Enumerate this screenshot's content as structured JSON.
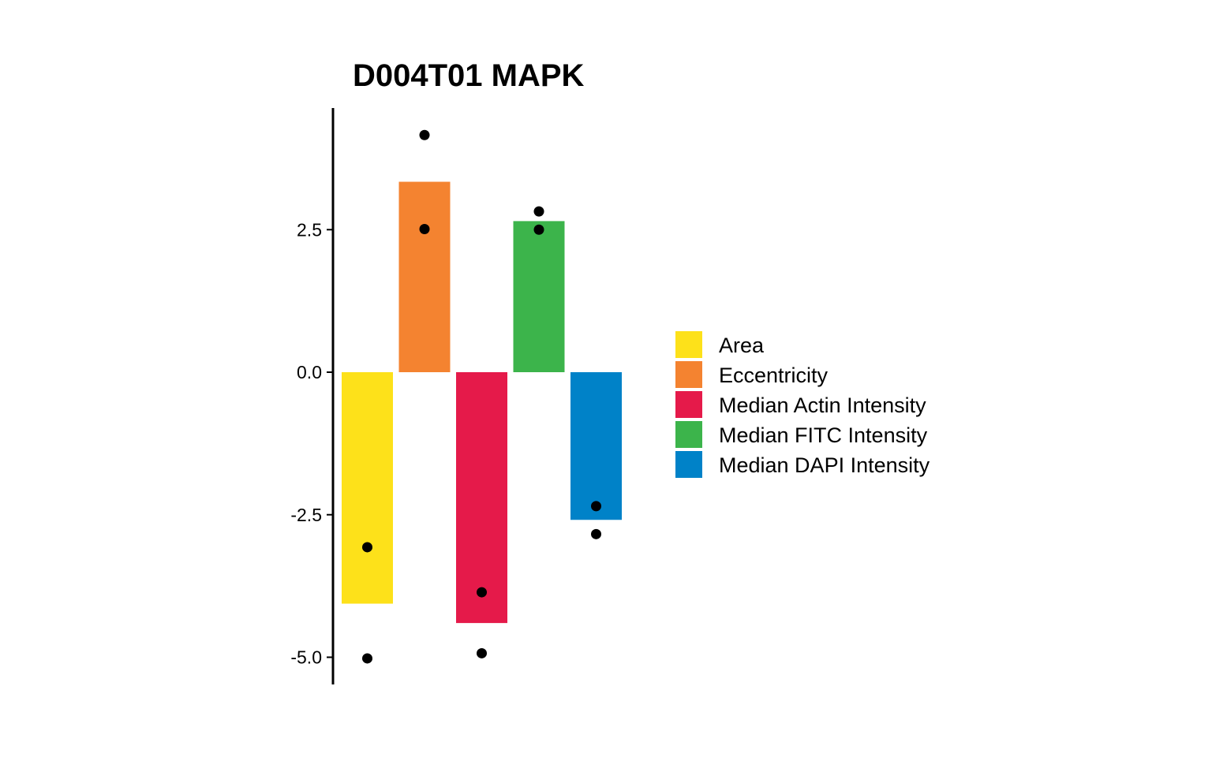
{
  "chart_data": {
    "type": "bar",
    "title": "D004T01 MAPK",
    "xlabel": "",
    "ylabel": "",
    "ylim": [
      -5.5,
      4.6
    ],
    "yticks": [
      "2.5",
      "0.0",
      "-2.5",
      "-5.0"
    ],
    "ytick_values": [
      2.5,
      0.0,
      -2.5,
      -5.0
    ],
    "grid": false,
    "legend_position": "right",
    "categories": [
      "Area",
      "Eccentricity",
      "Median Actin Intensity",
      "Median FITC Intensity",
      "Median DAPI Intensity"
    ],
    "values": [
      -4.06,
      3.34,
      -4.4,
      2.65,
      -2.59
    ],
    "colors": [
      "#FDE11A",
      "#F48330",
      "#E51A4A",
      "#3CB44B",
      "#0082C8"
    ],
    "points": [
      [
        -3.07,
        -5.02
      ],
      [
        4.16,
        2.51
      ],
      [
        -3.86,
        -4.93
      ],
      [
        2.82,
        2.5
      ],
      [
        -2.35,
        -2.84
      ]
    ]
  }
}
